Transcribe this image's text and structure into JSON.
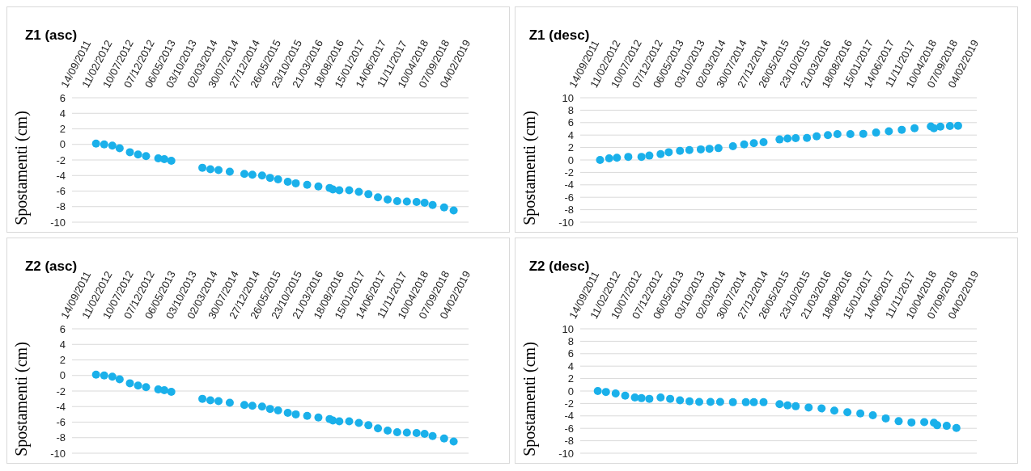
{
  "chart_data": [
    {
      "type": "scatter",
      "title": "Z1 (asc)",
      "ylabel": "Spostamenti (cm)",
      "color": "#1ab0ea",
      "marker": "circle",
      "grid": "y",
      "xlim": [
        "2011-08-18",
        "2019-05-11"
      ],
      "xticks": [
        {
          "value": "2011-09-14",
          "label": "14/09/2011"
        },
        {
          "value": "2012-02-11",
          "label": "11/02/2012"
        },
        {
          "value": "2012-07-10",
          "label": "10/07/2012"
        },
        {
          "value": "2012-12-07",
          "label": "07/12/2012"
        },
        {
          "value": "2013-05-06",
          "label": "06/05/2013"
        },
        {
          "value": "2013-10-03",
          "label": "03/10/2013"
        },
        {
          "value": "2014-03-02",
          "label": "02/03/2014"
        },
        {
          "value": "2014-07-30",
          "label": "30/07/2014"
        },
        {
          "value": "2014-12-27",
          "label": "27/12/2014"
        },
        {
          "value": "2015-05-26",
          "label": "26/05/2015"
        },
        {
          "value": "2015-10-23",
          "label": "23/10/2015"
        },
        {
          "value": "2016-03-21",
          "label": "21/03/2016"
        },
        {
          "value": "2016-08-18",
          "label": "18/08/2016"
        },
        {
          "value": "2017-01-15",
          "label": "15/01/2017"
        },
        {
          "value": "2017-06-14",
          "label": "14/06/2017"
        },
        {
          "value": "2017-11-11",
          "label": "11/11/2017"
        },
        {
          "value": "2018-04-10",
          "label": "10/04/2018"
        },
        {
          "value": "2018-09-07",
          "label": "07/09/2018"
        },
        {
          "value": "2019-02-04",
          "label": "04/02/2019"
        }
      ],
      "ylim": [
        -10,
        6
      ],
      "yticks": [
        -10,
        -8,
        -6,
        -4,
        -2,
        0,
        2,
        4,
        6
      ],
      "x": [
        "2012-02-05",
        "2012-04-03",
        "2012-05-31",
        "2012-07-22",
        "2012-10-03",
        "2012-11-30",
        "2013-01-26",
        "2013-04-23",
        "2013-06-05",
        "2013-07-25",
        "2014-03-03",
        "2014-04-29",
        "2014-06-26",
        "2014-09-14",
        "2014-12-27",
        "2015-02-22",
        "2015-05-02",
        "2015-06-28",
        "2015-08-24",
        "2015-11-01",
        "2015-12-28",
        "2016-03-18",
        "2016-06-06",
        "2016-08-25",
        "2016-09-17",
        "2016-11-02",
        "2017-01-11",
        "2017-03-21",
        "2017-05-28",
        "2017-08-04",
        "2017-10-12",
        "2017-12-19",
        "2018-02-26",
        "2018-05-06",
        "2018-07-02",
        "2018-08-28",
        "2018-11-18",
        "2019-01-25"
      ],
      "values": [
        0.1,
        0,
        -0.15,
        -0.5,
        -1.0,
        -1.3,
        -1.5,
        -1.8,
        -1.9,
        -2.1,
        -3.0,
        -3.2,
        -3.3,
        -3.5,
        -3.8,
        -3.9,
        -4.0,
        -4.3,
        -4.5,
        -4.8,
        -5.0,
        -5.2,
        -5.4,
        -5.6,
        -5.8,
        -5.9,
        -5.9,
        -6.1,
        -6.4,
        -6.8,
        -7.1,
        -7.3,
        -7.35,
        -7.4,
        -7.5,
        -7.8,
        -8.1,
        -8.5
      ]
    },
    {
      "type": "scatter",
      "title": "Z1 (desc)",
      "ylabel": "Spostamenti (cm)",
      "color": "#1ab0ea",
      "marker": "circle",
      "grid": "y",
      "xlim": [
        "2011-08-18",
        "2019-05-11"
      ],
      "xticks": [
        {
          "value": "2011-09-14",
          "label": "14/09/2011"
        },
        {
          "value": "2012-02-11",
          "label": "11/02/2012"
        },
        {
          "value": "2012-07-10",
          "label": "10/07/2012"
        },
        {
          "value": "2012-12-07",
          "label": "07/12/2012"
        },
        {
          "value": "2013-05-06",
          "label": "06/05/2013"
        },
        {
          "value": "2013-10-03",
          "label": "03/10/2013"
        },
        {
          "value": "2014-03-02",
          "label": "02/03/2014"
        },
        {
          "value": "2014-07-30",
          "label": "30/07/2014"
        },
        {
          "value": "2014-12-27",
          "label": "27/12/2014"
        },
        {
          "value": "2015-05-26",
          "label": "26/05/2015"
        },
        {
          "value": "2015-10-23",
          "label": "23/10/2015"
        },
        {
          "value": "2016-03-21",
          "label": "21/03/2016"
        },
        {
          "value": "2016-08-18",
          "label": "18/08/2016"
        },
        {
          "value": "2017-01-15",
          "label": "15/01/2017"
        },
        {
          "value": "2017-06-14",
          "label": "14/06/2017"
        },
        {
          "value": "2017-11-11",
          "label": "11/11/2017"
        },
        {
          "value": "2018-04-10",
          "label": "10/04/2018"
        },
        {
          "value": "2018-09-07",
          "label": "07/09/2018"
        },
        {
          "value": "2019-02-04",
          "label": "04/02/2019"
        }
      ],
      "ylim": [
        -10,
        10
      ],
      "yticks": [
        -10,
        -8,
        -6,
        -4,
        -2,
        0,
        2,
        4,
        6,
        8,
        10
      ],
      "x": [
        "2012-01-06",
        "2012-03-11",
        "2012-05-05",
        "2012-07-25",
        "2012-10-27",
        "2012-12-22",
        "2013-03-12",
        "2013-05-09",
        "2013-07-28",
        "2013-10-03",
        "2013-12-23",
        "2014-02-23",
        "2014-04-28",
        "2014-08-09",
        "2014-10-28",
        "2015-01-05",
        "2015-03-15",
        "2015-07-07",
        "2015-09-02",
        "2015-10-30",
        "2016-01-18",
        "2016-03-27",
        "2016-06-15",
        "2016-08-22",
        "2016-11-22",
        "2017-02-22",
        "2017-05-24",
        "2017-08-23",
        "2017-11-23",
        "2018-02-22",
        "2018-06-18",
        "2018-07-10",
        "2018-08-25",
        "2018-11-01",
        "2018-12-29"
      ],
      "values": [
        0.0,
        0.25,
        0.35,
        0.5,
        0.5,
        0.7,
        0.95,
        1.25,
        1.45,
        1.6,
        1.7,
        1.8,
        1.9,
        2.2,
        2.5,
        2.7,
        2.85,
        3.3,
        3.45,
        3.5,
        3.55,
        3.8,
        4.0,
        4.15,
        4.15,
        4.2,
        4.4,
        4.6,
        4.85,
        5.1,
        5.4,
        5.1,
        5.35,
        5.45,
        5.5
      ]
    },
    {
      "type": "scatter",
      "title": "Z2 (asc)",
      "ylabel": "Spostamenti (cm)",
      "color": "#1ab0ea",
      "marker": "circle",
      "grid": "y",
      "xlim": [
        "2011-08-18",
        "2019-05-11"
      ],
      "xticks": [
        {
          "value": "2011-09-14",
          "label": "14/09/2011"
        },
        {
          "value": "2012-02-11",
          "label": "11/02/2012"
        },
        {
          "value": "2012-07-10",
          "label": "10/07/2012"
        },
        {
          "value": "2012-12-07",
          "label": "07/12/2012"
        },
        {
          "value": "2013-05-06",
          "label": "06/05/2013"
        },
        {
          "value": "2013-10-03",
          "label": "03/10/2013"
        },
        {
          "value": "2014-03-02",
          "label": "02/03/2014"
        },
        {
          "value": "2014-07-30",
          "label": "30/07/2014"
        },
        {
          "value": "2014-12-27",
          "label": "27/12/2014"
        },
        {
          "value": "2015-05-26",
          "label": "26/05/2015"
        },
        {
          "value": "2015-10-23",
          "label": "23/10/2015"
        },
        {
          "value": "2016-03-21",
          "label": "21/03/2016"
        },
        {
          "value": "2016-08-18",
          "label": "18/08/2016"
        },
        {
          "value": "2017-01-15",
          "label": "15/01/2017"
        },
        {
          "value": "2017-06-14",
          "label": "14/06/2017"
        },
        {
          "value": "2017-11-11",
          "label": "11/11/2017"
        },
        {
          "value": "2018-04-10",
          "label": "10/04/2018"
        },
        {
          "value": "2018-09-07",
          "label": "07/09/2018"
        },
        {
          "value": "2019-02-04",
          "label": "04/02/2019"
        }
      ],
      "ylim": [
        -10,
        6
      ],
      "yticks": [
        -10,
        -8,
        -6,
        -4,
        -2,
        0,
        2,
        4,
        6
      ],
      "x": [
        "2012-02-05",
        "2012-04-03",
        "2012-05-31",
        "2012-07-22",
        "2012-10-03",
        "2012-11-30",
        "2013-01-26",
        "2013-04-23",
        "2013-06-05",
        "2013-07-25",
        "2014-03-03",
        "2014-04-29",
        "2014-06-26",
        "2014-09-14",
        "2014-12-27",
        "2015-02-22",
        "2015-05-02",
        "2015-06-28",
        "2015-08-24",
        "2015-11-01",
        "2015-12-28",
        "2016-03-18",
        "2016-06-06",
        "2016-08-25",
        "2016-09-17",
        "2016-11-02",
        "2017-01-11",
        "2017-03-21",
        "2017-05-28",
        "2017-08-04",
        "2017-10-12",
        "2017-12-19",
        "2018-02-26",
        "2018-05-06",
        "2018-07-02",
        "2018-08-28",
        "2018-11-18",
        "2019-01-25"
      ],
      "values": [
        0.1,
        0,
        -0.15,
        -0.5,
        -1.0,
        -1.3,
        -1.5,
        -1.8,
        -1.9,
        -2.1,
        -3.0,
        -3.2,
        -3.3,
        -3.5,
        -3.8,
        -3.9,
        -4.0,
        -4.3,
        -4.5,
        -4.8,
        -5.0,
        -5.2,
        -5.4,
        -5.6,
        -5.8,
        -5.9,
        -5.9,
        -6.1,
        -6.4,
        -6.8,
        -7.1,
        -7.3,
        -7.35,
        -7.4,
        -7.5,
        -7.8,
        -8.1,
        -8.5
      ]
    },
    {
      "type": "scatter",
      "title": "Z2 (desc)",
      "ylabel": "Spostamenti (cm)",
      "color": "#1ab0ea",
      "marker": "circle",
      "grid": "y",
      "xlim": [
        "2011-08-18",
        "2019-05-11"
      ],
      "xticks": [
        {
          "value": "2011-09-14",
          "label": "14/09/2011"
        },
        {
          "value": "2012-02-11",
          "label": "11/02/2012"
        },
        {
          "value": "2012-07-10",
          "label": "10/07/2012"
        },
        {
          "value": "2012-12-07",
          "label": "07/12/2012"
        },
        {
          "value": "2013-05-06",
          "label": "06/05/2013"
        },
        {
          "value": "2013-10-03",
          "label": "03/10/2013"
        },
        {
          "value": "2014-03-02",
          "label": "02/03/2014"
        },
        {
          "value": "2014-07-30",
          "label": "30/07/2014"
        },
        {
          "value": "2014-12-27",
          "label": "27/12/2014"
        },
        {
          "value": "2015-05-26",
          "label": "26/05/2015"
        },
        {
          "value": "2015-10-23",
          "label": "23/10/2015"
        },
        {
          "value": "2016-03-21",
          "label": "21/03/2016"
        },
        {
          "value": "2016-08-18",
          "label": "18/08/2016"
        },
        {
          "value": "2017-01-15",
          "label": "15/01/2017"
        },
        {
          "value": "2017-06-14",
          "label": "14/06/2017"
        },
        {
          "value": "2017-11-11",
          "label": "11/11/2017"
        },
        {
          "value": "2018-04-10",
          "label": "10/04/2018"
        },
        {
          "value": "2018-09-07",
          "label": "07/09/2018"
        },
        {
          "value": "2019-02-04",
          "label": "04/02/2019"
        }
      ],
      "ylim": [
        -10,
        10
      ],
      "yticks": [
        -10,
        -8,
        -6,
        -4,
        -2,
        0,
        2,
        4,
        6,
        8,
        10
      ],
      "x": [
        "2011-12-21",
        "2012-02-17",
        "2012-04-26",
        "2012-07-03",
        "2012-09-10",
        "2012-10-27",
        "2012-12-22",
        "2013-03-12",
        "2013-05-19",
        "2013-07-28",
        "2013-10-04",
        "2013-12-12",
        "2014-03-02",
        "2014-05-10",
        "2014-08-09",
        "2014-11-09",
        "2015-01-05",
        "2015-03-15",
        "2015-07-07",
        "2015-09-02",
        "2015-10-30",
        "2016-01-30",
        "2016-05-01",
        "2016-07-31",
        "2016-11-01",
        "2017-02-01",
        "2017-05-01",
        "2017-08-01",
        "2017-11-01",
        "2018-01-31",
        "2018-05-02",
        "2018-07-10",
        "2018-08-02",
        "2018-10-09",
        "2018-12-17"
      ],
      "values": [
        0.0,
        -0.15,
        -0.4,
        -0.75,
        -1.05,
        -1.15,
        -1.25,
        -1.05,
        -1.25,
        -1.5,
        -1.65,
        -1.75,
        -1.75,
        -1.75,
        -1.8,
        -1.8,
        -1.8,
        -1.8,
        -2.1,
        -2.3,
        -2.45,
        -2.65,
        -2.8,
        -3.15,
        -3.4,
        -3.6,
        -3.9,
        -4.4,
        -4.85,
        -5.05,
        -5.0,
        -5.1,
        -5.5,
        -5.6,
        -5.95
      ]
    }
  ]
}
